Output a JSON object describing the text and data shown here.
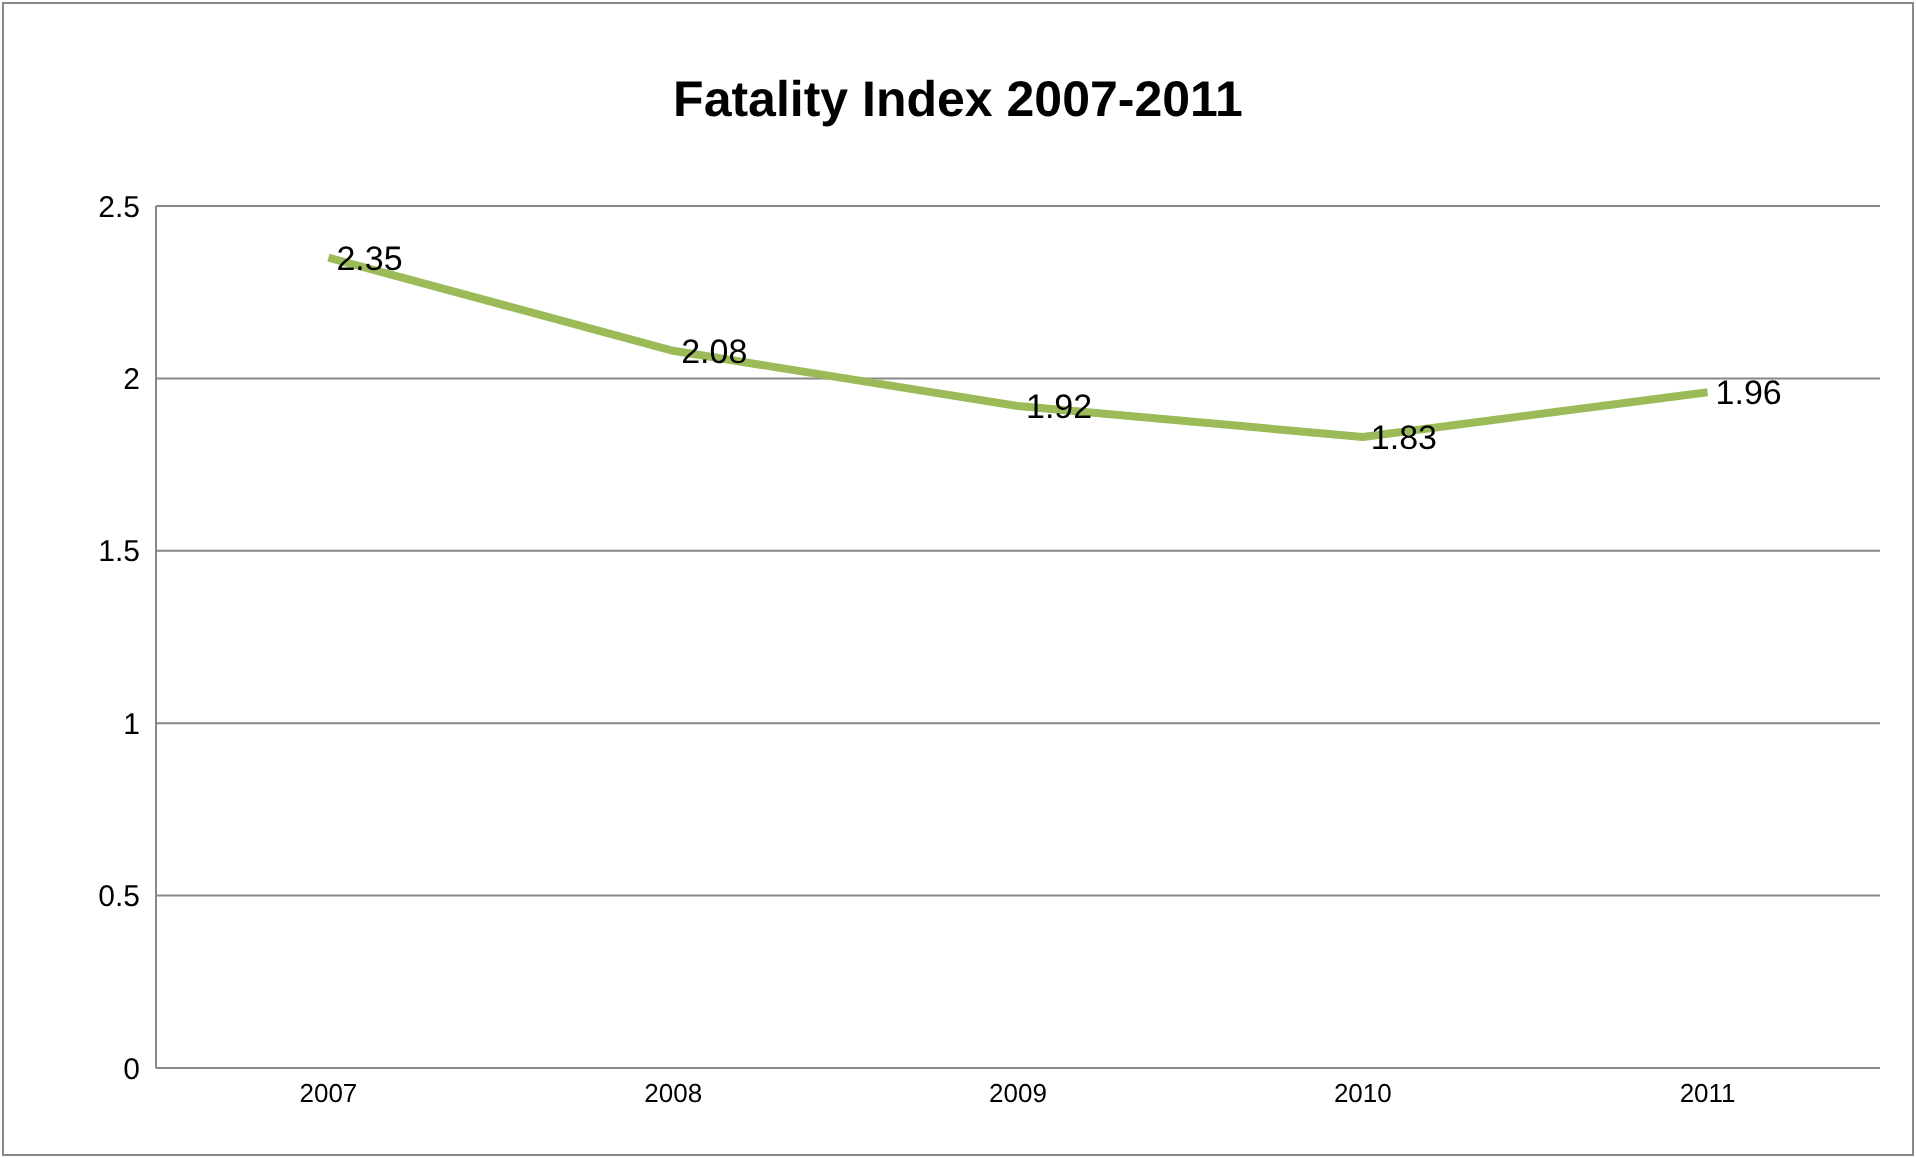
{
  "chart_data": {
    "type": "line",
    "title": "Fatality Index 2007-2011",
    "categories": [
      "2007",
      "2008",
      "2009",
      "2010",
      "2011"
    ],
    "series": [
      {
        "color": "#9bbb59",
        "values": [
          2.35,
          2.08,
          1.92,
          1.83,
          1.96
        ]
      }
    ],
    "ylim": [
      0,
      2.5
    ],
    "yticks": [
      0,
      0.5,
      1,
      1.5,
      2,
      2.5
    ],
    "grid": "y",
    "data_labels": true,
    "marker": "none",
    "line_style": "solid"
  }
}
